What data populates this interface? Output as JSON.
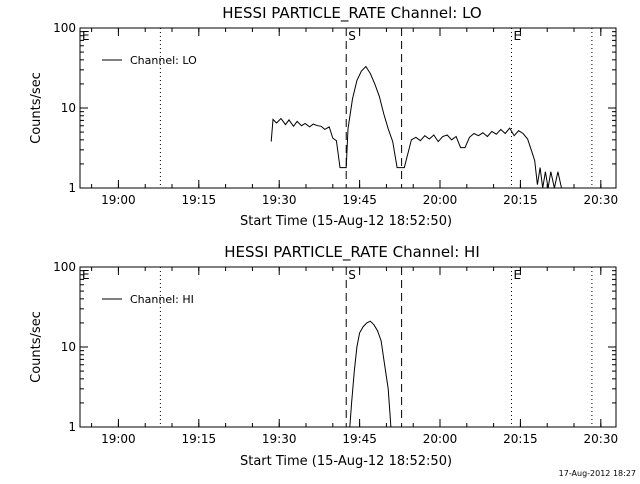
{
  "chart_data": [
    {
      "type": "line",
      "title": "HESSI PARTICLE_RATE Channel: LO",
      "xlabel": "Start Time (15-Aug-12 18:52:50)",
      "ylabel": "Counts/sec",
      "yscale": "log",
      "ylim": [
        1,
        100
      ],
      "xlim": [
        "18:52:50",
        "20:32:50"
      ],
      "x_ticks": [
        "19:00",
        "19:15",
        "19:30",
        "19:45",
        "20:00",
        "20:15",
        "20:30"
      ],
      "y_ticks": [
        "1",
        "10",
        "100"
      ],
      "legend": {
        "position": "top-left",
        "entries": [
          "Channel: LO"
        ]
      },
      "grid": false,
      "series": [
        {
          "name": "Channel: LO",
          "x": [
            "19:28:30",
            "19:28:50",
            "19:29:30",
            "19:30:20",
            "19:31:10",
            "19:31:50",
            "19:32:40",
            "19:33:20",
            "19:34:10",
            "19:34:50",
            "19:35:40",
            "19:36:20",
            "19:37:10",
            "19:37:50",
            "19:38:30",
            "19:39:20",
            "19:40:00",
            "19:40:40",
            "19:41:20",
            "19:42:00",
            "19:42:30",
            "19:42:50",
            "19:43:40",
            "19:44:30",
            "19:45:20",
            "19:46:10",
            "19:47:00",
            "19:47:50",
            "19:48:40",
            "19:49:30",
            "19:50:20",
            "19:51:10",
            "19:52:00",
            "19:52:40",
            "19:53:20",
            "19:54:40",
            "19:55:30",
            "19:56:20",
            "19:57:10",
            "19:58:00",
            "19:58:50",
            "19:59:40",
            "20:00:30",
            "20:01:20",
            "20:02:10",
            "20:03:00",
            "20:03:50",
            "20:04:40",
            "20:05:30",
            "20:06:20",
            "20:07:10",
            "20:08:00",
            "20:08:50",
            "20:09:40",
            "20:10:30",
            "20:11:20",
            "20:12:10",
            "20:13:00",
            "20:13:50",
            "20:14:40",
            "20:15:30",
            "20:16:20",
            "20:17:10",
            "20:17:40",
            "20:18:10",
            "20:18:40",
            "20:19:10",
            "20:19:40",
            "20:20:10",
            "20:20:40",
            "20:21:20",
            "20:22:00",
            "20:22:40"
          ],
          "y": [
            3.8,
            7.2,
            6.5,
            7.4,
            6.2,
            7.1,
            5.9,
            6.8,
            6.0,
            6.4,
            5.8,
            6.3,
            6.0,
            5.9,
            5.4,
            5.8,
            4.2,
            3.9,
            1.8,
            1.8,
            1.8,
            5.5,
            13,
            22,
            29,
            33,
            27,
            20,
            14,
            8.5,
            5.5,
            3.8,
            1.8,
            1.8,
            1.8,
            4.0,
            4.3,
            3.9,
            4.5,
            4.1,
            4.6,
            3.8,
            4.4,
            4.6,
            4.0,
            4.4,
            3.2,
            3.2,
            4.3,
            4.8,
            4.5,
            4.9,
            4.4,
            5.1,
            4.7,
            5.4,
            4.8,
            5.6,
            4.5,
            5.2,
            4.8,
            4.1,
            2.8,
            2.2,
            1.1,
            1.8,
            1.0,
            1.6,
            1.0,
            1.6,
            1.0,
            1.6,
            1.0
          ]
        }
      ],
      "annotations": [
        {
          "text": "E",
          "x": "18:52:50"
        },
        {
          "text": "S",
          "x": "19:42:30",
          "style": "dashed"
        },
        {
          "text": "",
          "x": "19:52:50",
          "style": "dashed"
        },
        {
          "text": "",
          "x": "19:07:50",
          "style": "dotted"
        },
        {
          "text": "E",
          "x": "20:13:20",
          "style": "dotted"
        },
        {
          "text": "",
          "x": "20:28:20",
          "style": "dotted"
        }
      ]
    },
    {
      "type": "line",
      "title": "HESSI PARTICLE_RATE Channel: HI",
      "xlabel": "Start Time (15-Aug-12 18:52:50)",
      "ylabel": "Counts/sec",
      "yscale": "log",
      "ylim": [
        1,
        100
      ],
      "xlim": [
        "18:52:50",
        "20:32:50"
      ],
      "x_ticks": [
        "19:00",
        "19:15",
        "19:30",
        "19:45",
        "20:00",
        "20:15",
        "20:30"
      ],
      "y_ticks": [
        "1",
        "10",
        "100"
      ],
      "legend": {
        "position": "top-left",
        "entries": [
          "Channel: HI"
        ]
      },
      "grid": false,
      "series": [
        {
          "name": "Channel: HI",
          "x": [
            "19:43:10",
            "19:43:30",
            "19:44:00",
            "19:44:30",
            "19:45:00",
            "19:45:40",
            "19:46:20",
            "19:47:00",
            "19:47:40",
            "19:48:20",
            "19:49:00",
            "19:49:40",
            "19:50:20",
            "19:50:50"
          ],
          "y": [
            1.0,
            2.0,
            5.0,
            10,
            15,
            18,
            20,
            21,
            19,
            16,
            12,
            6,
            3,
            1.0
          ]
        }
      ],
      "annotations": [
        {
          "text": "E",
          "x": "18:52:50"
        },
        {
          "text": "S",
          "x": "19:42:30",
          "style": "dashed"
        },
        {
          "text": "",
          "x": "19:52:50",
          "style": "dashed"
        },
        {
          "text": "",
          "x": "19:07:50",
          "style": "dotted"
        },
        {
          "text": "E",
          "x": "20:13:20",
          "style": "dotted"
        },
        {
          "text": "",
          "x": "20:28:20",
          "style": "dotted"
        }
      ]
    }
  ],
  "footer": {
    "timestamp": "17-Aug-2012 18:27"
  }
}
